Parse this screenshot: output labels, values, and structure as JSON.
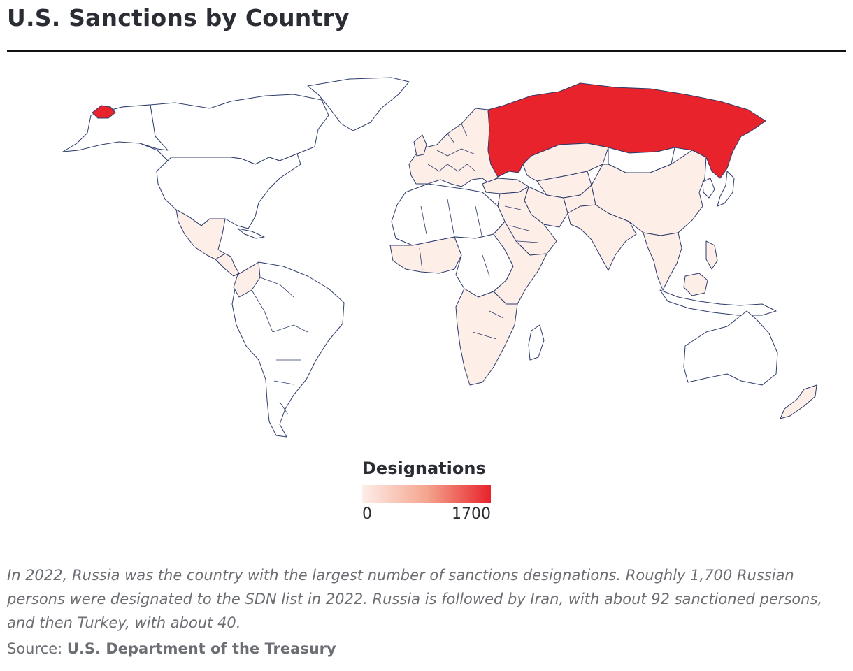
{
  "title": "U.S. Sanctions by Country",
  "legend": {
    "title": "Designations",
    "min_label": "0",
    "max_label": "1700",
    "min": 0,
    "max": 1700,
    "color_low": "#fdeee8",
    "color_mid": "#f4a58f",
    "color_high": "#e8232b"
  },
  "caption": "In 2022, Russia was the country with the largest number of sanctions designations. Roughly 1,700 Russian persons were designated to the SDN list in 2022. Russia is followed by Iran, with about 92 sanctioned persons, and then Turkey, with about 40.",
  "source": {
    "prefix": "Source:",
    "name": "U.S. Department of the Treasury"
  },
  "colors": {
    "border": "#2c3b6b",
    "no_data": "#ffffff",
    "low": "#fdeee8",
    "high": "#e8232b"
  },
  "map_data": {
    "type": "choropleth",
    "metric": "designations",
    "regions": [
      {
        "id": "russia",
        "value": 1700
      },
      {
        "id": "alaska-russia-tip",
        "value": 1700
      },
      {
        "id": "iran",
        "value": 92
      },
      {
        "id": "turkey",
        "value": 40
      },
      {
        "id": "china",
        "value": 20
      },
      {
        "id": "mexico",
        "value": 15
      },
      {
        "id": "india",
        "value": 10
      },
      {
        "id": "europe",
        "value": 10
      },
      {
        "id": "middle-east",
        "value": 10
      },
      {
        "id": "southern-africa",
        "value": 5
      },
      {
        "id": "west-africa",
        "value": 5
      },
      {
        "id": "east-africa",
        "value": 5
      },
      {
        "id": "central-america",
        "value": 10
      },
      {
        "id": "southeast-asia",
        "value": 10
      },
      {
        "id": "new-zealand",
        "value": 5
      },
      {
        "id": "colombia",
        "value": 5
      },
      {
        "id": "central-asia",
        "value": 5
      },
      {
        "id": "kazakhstan",
        "value": 5
      },
      {
        "id": "canada",
        "value": 0
      },
      {
        "id": "usa",
        "value": 0
      },
      {
        "id": "greenland",
        "value": 0
      },
      {
        "id": "south-america",
        "value": 0
      },
      {
        "id": "north-africa",
        "value": 0
      },
      {
        "id": "central-africa",
        "value": 0
      },
      {
        "id": "australia",
        "value": 0
      },
      {
        "id": "mongolia",
        "value": 0
      },
      {
        "id": "madagascar",
        "value": 0
      },
      {
        "id": "japan",
        "value": 0
      },
      {
        "id": "indonesia",
        "value": 0
      }
    ]
  }
}
